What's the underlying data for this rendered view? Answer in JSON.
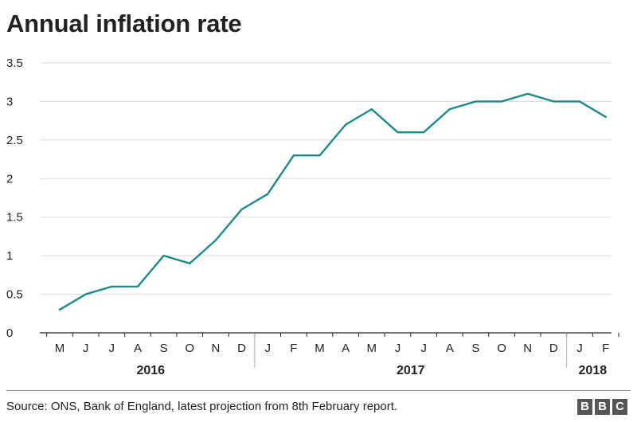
{
  "chart_data": {
    "type": "line",
    "title": "Annual inflation rate",
    "xlabel": "",
    "ylabel": "",
    "ylim": [
      0,
      3.5
    ],
    "yticks": [
      "0",
      "0.5",
      "1",
      "1.5",
      "2",
      "2.5",
      "3",
      "3.5"
    ],
    "grid": true,
    "categories": [
      "M",
      "J",
      "J",
      "A",
      "S",
      "O",
      "N",
      "D",
      "J",
      "F",
      "M",
      "A",
      "M",
      "J",
      "J",
      "A",
      "S",
      "O",
      "N",
      "D",
      "J",
      "F"
    ],
    "years": [
      {
        "label": "2016",
        "start": 0,
        "end": 7
      },
      {
        "label": "2017",
        "start": 8,
        "end": 19
      },
      {
        "label": "2018",
        "start": 20,
        "end": 21
      }
    ],
    "series": [
      {
        "values": [
          0.3,
          0.5,
          0.6,
          0.6,
          1.0,
          0.9,
          1.2,
          1.6,
          1.8,
          2.3,
          2.3,
          2.7,
          2.9,
          2.6,
          2.6,
          2.9,
          3.0,
          3.0,
          3.1,
          3.0,
          3.0,
          2.8
        ],
        "color": "#1a8a8a"
      }
    ]
  },
  "footer": {
    "source": "Source: ONS, Bank of England, latest projection from 8th February report.",
    "logo_letters": [
      "B",
      "B",
      "C"
    ]
  },
  "colors": {
    "line": "#1a8a8a",
    "grid": "#d9d9d9",
    "axis": "#222222",
    "text": "#222222"
  }
}
